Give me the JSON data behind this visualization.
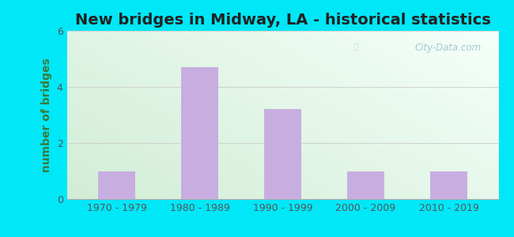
{
  "title": "New bridges in Midway, LA - historical statistics",
  "categories": [
    "1970 - 1979",
    "1980 - 1989",
    "1990 - 1999",
    "2000 - 2009",
    "2010 - 2019"
  ],
  "values": [
    1,
    4.7,
    3.2,
    1,
    1
  ],
  "bar_color": "#c8aee0",
  "ylabel": "number of bridges",
  "ylim": [
    0,
    6
  ],
  "yticks": [
    0,
    2,
    4,
    6
  ],
  "title_fontsize": 14,
  "label_fontsize": 10,
  "tick_fontsize": 9,
  "outer_bg": "#00e8f8",
  "watermark_text": "City-Data.com",
  "watermark_color": "#9bbfc8",
  "title_color": "#222222",
  "axis_label_color": "#3a7a3a",
  "tick_color": "#555555",
  "grid_color": "#cccccc",
  "bar_width": 0.45
}
